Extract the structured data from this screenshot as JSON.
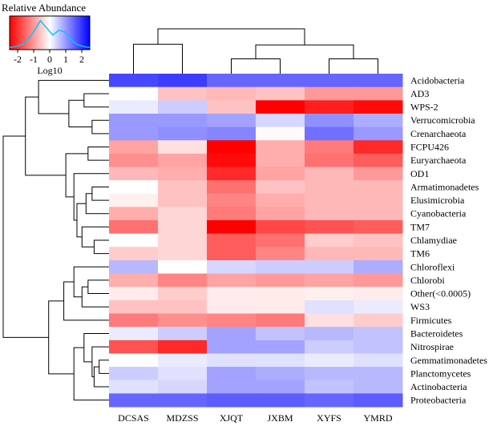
{
  "chart_data": {
    "type": "heatmap",
    "legend": {
      "title": "Relative Abundance",
      "scale_label": "Log10",
      "ticks": [
        "-2",
        "-1",
        "0",
        "1",
        "2"
      ],
      "range": [
        -2.5,
        2.5
      ],
      "colors": {
        "low": "#ff0000",
        "mid": "#ffffff",
        "high": "#0000ff"
      },
      "density_color": "#00c8ff",
      "density_curve": [
        0.02,
        0.05,
        0.12,
        0.3,
        0.6,
        0.95,
        0.7,
        0.45,
        0.62,
        0.55,
        0.28,
        0.12,
        0.05,
        0.02
      ]
    },
    "columns": [
      "DCSAS",
      "MDZSS",
      "XJQT",
      "JXBM",
      "XYFS",
      "YMRD"
    ],
    "rows": [
      "Acidobacteria",
      "AD3",
      "WPS-2",
      "Verrucomicrobia",
      "Crenarchaeota",
      "FCPU426",
      "Euryarchaeota",
      "OD1",
      "Armatimonadetes",
      "Elusimicrobia",
      "Cyanobacteria",
      "TM7",
      "Chlamydiae",
      "TM6",
      "Chloroflexi",
      "Chlorobi",
      "Other(<0.0005)",
      "WS3",
      "Firmicutes",
      "Bacteroidetes",
      "Nitrospirae",
      "Gemmatimonadetes",
      "Planctomycetes",
      "Actinobacteria",
      "Proteobacteria"
    ],
    "values": [
      [
        1.8,
        1.9,
        1.5,
        1.5,
        1.5,
        1.5
      ],
      [
        0.0,
        -0.6,
        -0.7,
        -0.6,
        -1.0,
        -1.0
      ],
      [
        0.2,
        0.5,
        -0.6,
        -2.5,
        -2.2,
        -2.4
      ],
      [
        1.0,
        1.0,
        0.9,
        0.4,
        1.1,
        0.8
      ],
      [
        1.0,
        1.1,
        1.2,
        -0.05,
        1.4,
        1.0
      ],
      [
        -0.9,
        -0.3,
        -2.5,
        -0.8,
        -1.3,
        -2.1
      ],
      [
        -1.1,
        -0.9,
        -2.4,
        -0.8,
        -1.4,
        -1.6
      ],
      [
        -0.7,
        -0.8,
        -2.1,
        -0.9,
        -0.7,
        -1.0
      ],
      [
        0.0,
        -0.6,
        -1.4,
        -0.6,
        -0.7,
        -0.7
      ],
      [
        -0.15,
        -0.6,
        -1.2,
        -0.8,
        -0.7,
        -0.7
      ],
      [
        -0.8,
        -0.4,
        -1.3,
        -0.9,
        -0.7,
        -0.7
      ],
      [
        -1.4,
        -0.4,
        -2.5,
        -1.8,
        -1.7,
        -1.6
      ],
      [
        0.0,
        -0.4,
        -1.6,
        -1.4,
        -0.5,
        -0.6
      ],
      [
        -0.5,
        -0.4,
        -1.6,
        -1.2,
        -0.7,
        -0.7
      ],
      [
        0.7,
        0.0,
        0.4,
        0.5,
        0.5,
        0.8
      ],
      [
        -0.8,
        -1.2,
        -0.9,
        -1.0,
        -0.9,
        -1.0
      ],
      [
        -0.2,
        -0.5,
        -0.2,
        -0.2,
        -0.15,
        -0.2
      ],
      [
        -0.6,
        -0.6,
        -0.2,
        -0.2,
        0.3,
        0.2
      ],
      [
        -1.3,
        -1.1,
        -1.2,
        -1.3,
        -0.3,
        -0.5
      ],
      [
        0.2,
        0.5,
        0.9,
        0.6,
        0.7,
        0.6
      ],
      [
        -1.7,
        -2.1,
        0.9,
        0.9,
        0.5,
        0.6
      ],
      [
        0.0,
        0.2,
        0.3,
        0.3,
        0.2,
        0.3
      ],
      [
        0.5,
        0.3,
        0.9,
        0.8,
        0.7,
        0.7
      ],
      [
        0.3,
        0.4,
        0.9,
        0.9,
        0.6,
        0.7
      ],
      [
        1.5,
        1.5,
        1.6,
        1.6,
        1.5,
        1.6
      ]
    ],
    "column_dendrogram": [
      {
        "a": 2,
        "b": 3,
        "h": 0.22
      },
      {
        "a": 4,
        "b": 5,
        "h": 0.22
      },
      {
        "a": "A",
        "b": "B",
        "h": 0.58
      },
      {
        "a": 0,
        "b": 1,
        "h": 0.6
      },
      {
        "a": "D",
        "b": "C",
        "h": 1.0
      }
    ],
    "row_dendrogram": [
      {
        "a": 3,
        "b": 4,
        "h": 0.12
      },
      {
        "a": 1,
        "b": 2,
        "h": 0.2
      },
      {
        "a": "r0",
        "b": "r1",
        "h": 0.35
      },
      {
        "a": 0,
        "b": "r2",
        "h": 0.65
      },
      {
        "a": 5,
        "b": 6,
        "h": 0.16
      },
      {
        "a": 8,
        "b": 9,
        "h": 0.12
      },
      {
        "a": 10,
        "b": "r5",
        "h": 0.18
      },
      {
        "a": 12,
        "b": 13,
        "h": 0.1
      },
      {
        "a": 11,
        "b": "r7",
        "h": 0.22
      },
      {
        "a": "r6",
        "b": "r8",
        "h": 0.27
      },
      {
        "a": 7,
        "b": "r9",
        "h": 0.3
      },
      {
        "a": "r4",
        "b": "r10",
        "h": 0.38
      },
      {
        "a": "r3",
        "b": "r11",
        "h": 0.78
      },
      {
        "a": 15,
        "b": 16,
        "h": 0.16
      },
      {
        "a": "r13",
        "b": 17,
        "h": 0.22
      },
      {
        "a": 14,
        "b": "r14",
        "h": 0.3
      },
      {
        "a": "r15",
        "b": 18,
        "h": 0.4
      },
      {
        "a": 21,
        "b": 22,
        "h": 0.05
      },
      {
        "a": "r17",
        "b": 23,
        "h": 0.1
      },
      {
        "a": 20,
        "b": "r18",
        "h": 0.12
      },
      {
        "a": 19,
        "b": "r19",
        "h": 0.2
      },
      {
        "a": "r20",
        "b": 24,
        "h": 0.3
      },
      {
        "a": "r16",
        "b": "r21",
        "h": 0.55
      },
      {
        "a": "r12",
        "b": "r22",
        "h": 1.0
      }
    ]
  }
}
